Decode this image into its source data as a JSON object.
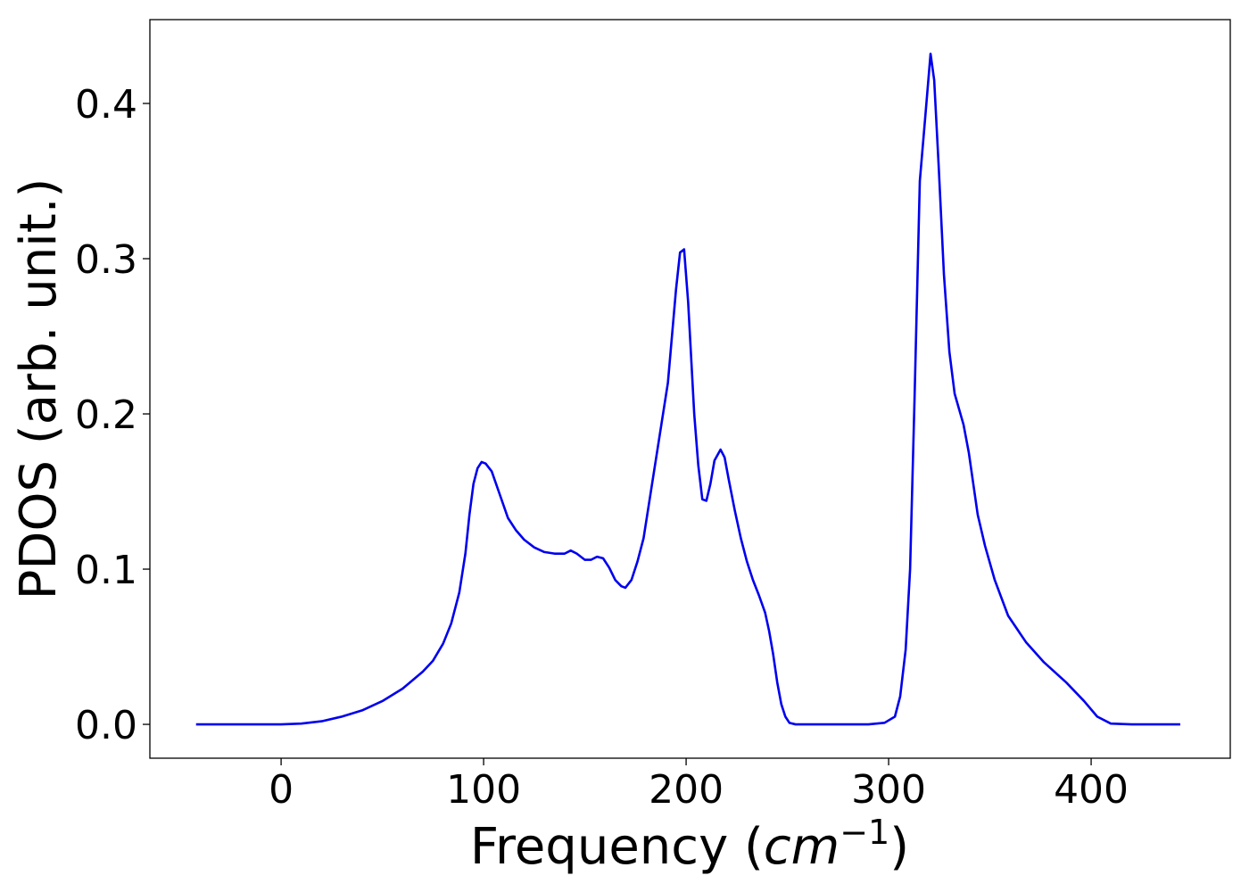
{
  "chart_data": {
    "type": "line",
    "xlabel": {
      "text": "Frequency (",
      "math": "cm",
      "sup": "−1",
      "close": ")"
    },
    "ylabel": "PDOS (arb. unit.)",
    "xlim": [
      -64.8,
      468.7
    ],
    "ylim": [
      -0.0218,
      0.454
    ],
    "xticks": [
      0,
      100,
      200,
      300,
      400
    ],
    "yticks": [
      {
        "value": 0,
        "label": "0.0"
      },
      0.1,
      0.2,
      0.3,
      0.4
    ],
    "series": [
      {
        "color": "#0000ee",
        "x": [
          -42,
          -20,
          0,
          10,
          20,
          30,
          40,
          50,
          60,
          70,
          75,
          80,
          84,
          88,
          91,
          93,
          95,
          97,
          99,
          101,
          104,
          108,
          112,
          116,
          120,
          125,
          130,
          135,
          140,
          143,
          146,
          150,
          153,
          156,
          159,
          162,
          165,
          168,
          170,
          173,
          176,
          179,
          182,
          185,
          188,
          191,
          193,
          195,
          197,
          199,
          201,
          204,
          206,
          208,
          210,
          212,
          214,
          217,
          219,
          221,
          224,
          227,
          230,
          233,
          236,
          239,
          241,
          243,
          245,
          247,
          249,
          251,
          254,
          270,
          290,
          298,
          303.1,
          305.7,
          308.4,
          310.6,
          312.8,
          315.4,
          318,
          320.7,
          322.5,
          324.7,
          327.3,
          330,
          332.6,
          337,
          339.6,
          344,
          347.6,
          352.4,
          359,
          367.8,
          376.7,
          387.7,
          396.5,
          403,
          409.7,
          420,
          444
        ],
        "values": [
          0,
          0,
          0,
          0.0005,
          0.002,
          0.005,
          0.009,
          0.015,
          0.023,
          0.034,
          0.041,
          0.052,
          0.065,
          0.085,
          0.11,
          0.135,
          0.155,
          0.165,
          0.169,
          0.168,
          0.163,
          0.148,
          0.133,
          0.125,
          0.119,
          0.114,
          0.111,
          0.11,
          0.11,
          0.112,
          0.11,
          0.106,
          0.106,
          0.108,
          0.107,
          0.101,
          0.093,
          0.089,
          0.088,
          0.093,
          0.105,
          0.12,
          0.145,
          0.17,
          0.195,
          0.22,
          0.25,
          0.28,
          0.304,
          0.306,
          0.272,
          0.2,
          0.167,
          0.145,
          0.144,
          0.155,
          0.17,
          0.177,
          0.172,
          0.158,
          0.138,
          0.12,
          0.105,
          0.093,
          0.083,
          0.072,
          0.06,
          0.045,
          0.027,
          0.013,
          0.005,
          0.001,
          0,
          0,
          0,
          0.001,
          0.005,
          0.018,
          0.048,
          0.1,
          0.21,
          0.35,
          0.39,
          0.432,
          0.415,
          0.36,
          0.29,
          0.24,
          0.213,
          0.193,
          0.175,
          0.135,
          0.115,
          0.093,
          0.07,
          0.053,
          0.04,
          0.027,
          0.015,
          0.005,
          0.0005,
          0,
          0
        ]
      }
    ]
  }
}
